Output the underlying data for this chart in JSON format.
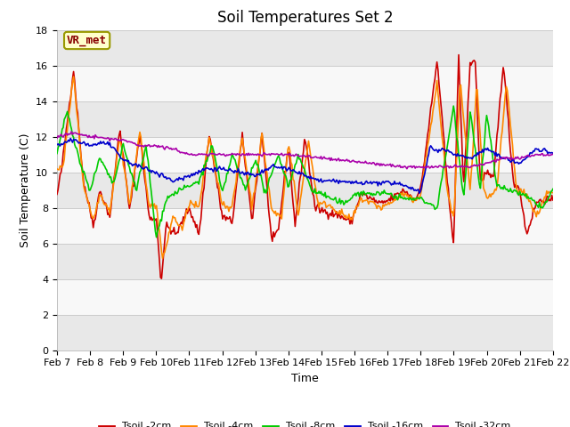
{
  "title": "Soil Temperatures Set 2",
  "xlabel": "Time",
  "ylabel": "Soil Temperature (C)",
  "ylim": [
    0,
    18
  ],
  "yticks": [
    0,
    2,
    4,
    6,
    8,
    10,
    12,
    14,
    16,
    18
  ],
  "x_labels": [
    "Feb 7",
    "Feb 8",
    "Feb 9",
    "Feb 10",
    "Feb 11",
    "Feb 12",
    "Feb 13",
    "Feb 14",
    "Feb 15",
    "Feb 16",
    "Feb 17",
    "Feb 18",
    "Feb 19",
    "Feb 20",
    "Feb 21",
    "Feb 22"
  ],
  "legend_labels": [
    "Tsoil -2cm",
    "Tsoil -4cm",
    "Tsoil -8cm",
    "Tsoil -16cm",
    "Tsoil -32cm"
  ],
  "line_colors": [
    "#cc0000",
    "#ff8800",
    "#00cc00",
    "#0000cc",
    "#aa00aa"
  ],
  "annotation_text": "VR_met",
  "annotation_box_facecolor": "#ffffcc",
  "annotation_box_edgecolor": "#999900",
  "annotation_text_color": "#880000",
  "background_color": "#ffffff",
  "band_colors": [
    "#e8e8e8",
    "#f8f8f8"
  ],
  "grid_color": "#cccccc",
  "title_fontsize": 12,
  "label_fontsize": 9,
  "tick_fontsize": 8,
  "n_points": 480,
  "line_width": 1.2
}
